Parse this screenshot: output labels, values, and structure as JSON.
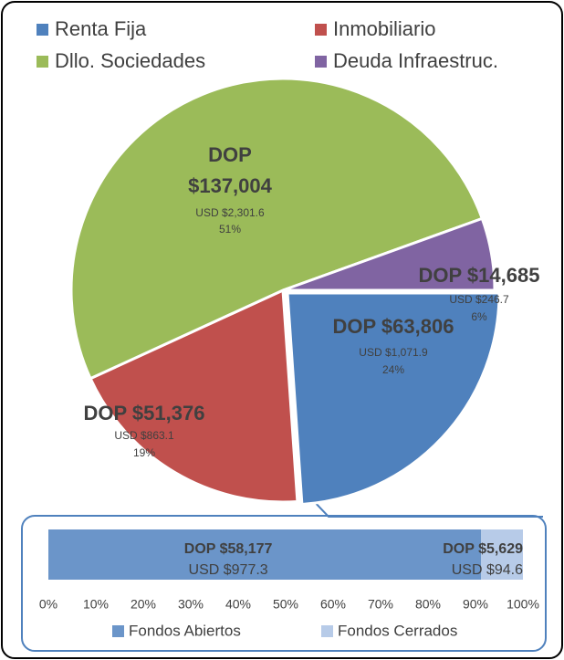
{
  "chart_data": [
    {
      "type": "pie",
      "categories": [
        "Renta Fija",
        "Inmobiliario",
        "Dllo. Sociedades",
        "Deuda Infraestruc."
      ],
      "values": [
        63806,
        51376,
        137004,
        14685
      ],
      "value_labels": [
        "DOP $63,806",
        "DOP $51,376",
        "DOP $137,004",
        "DOP $14,685"
      ],
      "usd": [
        1071.9,
        863.1,
        2301.6,
        246.7
      ],
      "usd_labels": [
        "USD $1,071.9",
        "USD $863.1",
        "USD $2,301.6",
        "USD $246.7"
      ],
      "percents": [
        24,
        19,
        51,
        6
      ],
      "percent_labels": [
        "24%",
        "19%",
        "51%",
        "6%"
      ],
      "colors": [
        "#4f81bd",
        "#c0504d",
        "#9bbb59",
        "#8064a2"
      ]
    },
    {
      "type": "stacked-bar",
      "series": [
        {
          "name": "Fondos Abiertos",
          "color": "#6b95c9",
          "values": [
            91.2
          ],
          "dop": [
            58177
          ],
          "dop_labels": [
            "DOP $58,177"
          ],
          "usd": [
            977.3
          ],
          "usd_labels": [
            "USD $977.3"
          ]
        },
        {
          "name": "Fondos Cerrados",
          "color": "#b7cbe8",
          "values": [
            8.8
          ],
          "dop": [
            5629
          ],
          "dop_labels": [
            "DOP $5,629"
          ],
          "usd": [
            94.6
          ],
          "usd_labels": [
            "USD $94.6"
          ]
        }
      ],
      "xlim": [
        0,
        100
      ],
      "xticks": [
        {
          "value": 0,
          "label": "0%"
        },
        {
          "value": 10,
          "label": "10%"
        },
        {
          "value": 20,
          "label": "20%"
        },
        {
          "value": 30,
          "label": "30%"
        },
        {
          "value": 40,
          "label": "40%"
        },
        {
          "value": 50,
          "label": "50%"
        },
        {
          "value": 60,
          "label": "60%"
        },
        {
          "value": 70,
          "label": "70%"
        },
        {
          "value": 80,
          "label": "80%"
        },
        {
          "value": 90,
          "label": "90%"
        },
        {
          "value": 100,
          "label": "100%"
        }
      ]
    }
  ]
}
